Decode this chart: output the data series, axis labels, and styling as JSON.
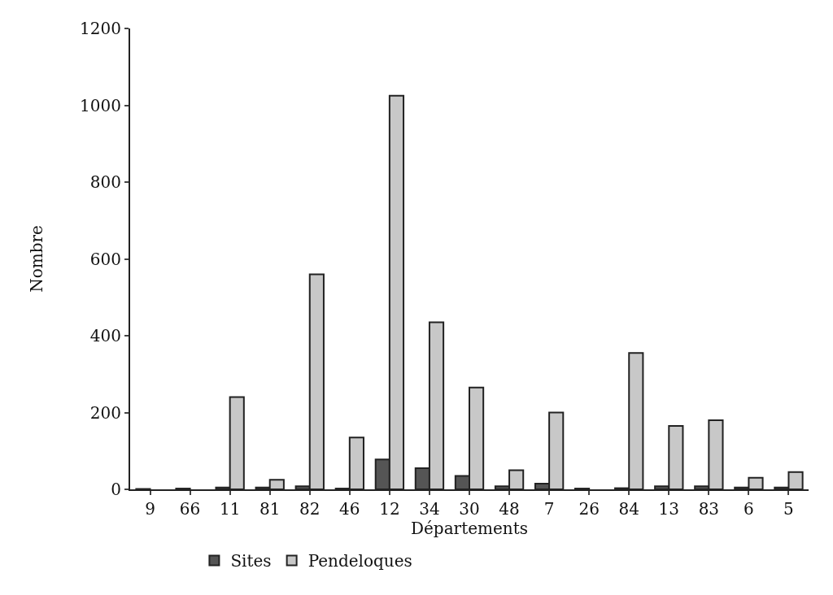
{
  "chart_data": {
    "type": "bar",
    "xlabel": "Départements",
    "ylabel": "Nombre",
    "categories": [
      "9",
      "66",
      "11",
      "81",
      "82",
      "46",
      "12",
      "34",
      "30",
      "48",
      "7",
      "26",
      "84",
      "13",
      "83",
      "6",
      "5"
    ],
    "series": [
      {
        "name": "Sites",
        "color": "#555555",
        "values": [
          1,
          2,
          5,
          5,
          8,
          2,
          78,
          55,
          35,
          8,
          15,
          2,
          3,
          8,
          8,
          5,
          5
        ]
      },
      {
        "name": "Pendeloques",
        "color": "#c8c8c8",
        "values": [
          0,
          0,
          240,
          25,
          560,
          135,
          1025,
          435,
          265,
          50,
          200,
          0,
          355,
          165,
          180,
          30,
          45
        ]
      }
    ],
    "ylim": [
      0,
      1200
    ],
    "yticks": [
      0,
      200,
      400,
      600,
      800,
      1000,
      1200
    ],
    "grid": false,
    "legend": "bottom"
  }
}
